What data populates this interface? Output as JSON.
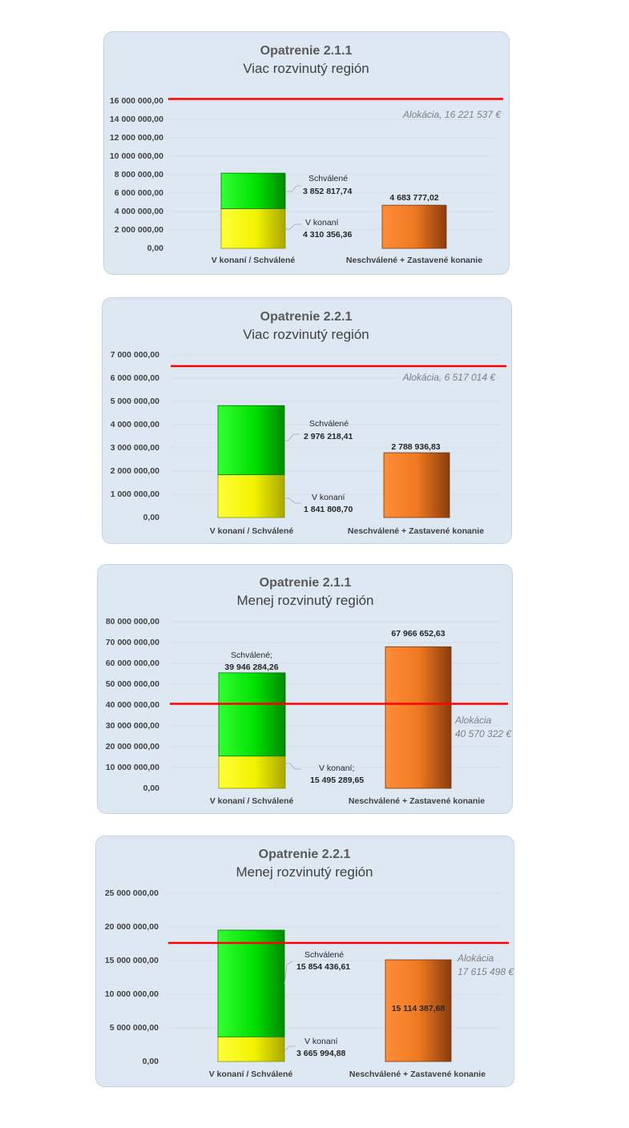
{
  "chart_data": [
    {
      "type": "bar",
      "title": "Opatrenie 2.1.1",
      "subtitle": "Viac rozvinutý región",
      "categories": [
        "V konaní / Schválené",
        "Neschválené + Zastavené konanie"
      ],
      "series": [
        {
          "name": "V konaní",
          "values": [
            4310356.36,
            null
          ],
          "color": "#ffff00"
        },
        {
          "name": "Schválené",
          "values": [
            3852817.74,
            null
          ],
          "color": "#00ee00"
        },
        {
          "name": "",
          "values": [
            null,
            4683777.02
          ],
          "color": "#f58024"
        }
      ],
      "labels": {
        "in_progress": {
          "name": "V konaní",
          "value": "4 310 356,36"
        },
        "approved": {
          "name": "Schválené",
          "value": "3 852 817,74"
        },
        "rejected": {
          "value": "4 683 777,02"
        }
      },
      "allocation": {
        "value": 16221537,
        "label": "Alokácia, 16 221 537 €",
        "color": "#ff0000"
      },
      "ylim": [
        0,
        16000000
      ],
      "yticks": [
        "0,00",
        "2 000 000,00",
        "4 000 000,00",
        "6 000 000,00",
        "8 000 000,00",
        "10 000 000,00",
        "12 000 000,00",
        "14 000 000,00",
        "16 000 000,00"
      ],
      "grid": true
    },
    {
      "type": "bar",
      "title": "Opatrenie 2.2.1",
      "subtitle": "Viac rozvinutý región",
      "categories": [
        "V konaní / Schválené",
        "Neschválené + Zastavené konanie"
      ],
      "series": [
        {
          "name": "V konaní",
          "values": [
            1841808.7,
            null
          ],
          "color": "#ffff00"
        },
        {
          "name": "Schválené",
          "values": [
            2976218.41,
            null
          ],
          "color": "#00ee00"
        },
        {
          "name": "",
          "values": [
            null,
            2788936.83
          ],
          "color": "#f58024"
        }
      ],
      "labels": {
        "in_progress": {
          "name": "V konaní",
          "value": "1 841 808,70"
        },
        "approved": {
          "name": "Schválené",
          "value": "2 976 218,41"
        },
        "rejected": {
          "value": "2 788 936,83"
        }
      },
      "allocation": {
        "value": 6517014,
        "label": "Alokácia, 6 517 014 €",
        "color": "#ff0000"
      },
      "ylim": [
        0,
        7000000
      ],
      "yticks": [
        "0,00",
        "1 000 000,00",
        "2 000 000,00",
        "3 000 000,00",
        "4 000 000,00",
        "5 000 000,00",
        "6 000 000,00",
        "7 000 000,00"
      ],
      "grid": true
    },
    {
      "type": "bar",
      "title": "Opatrenie 2.1.1",
      "subtitle": "Menej rozvinutý región",
      "categories": [
        "V konaní / Schválené",
        "Neschválené + Zastavené konanie"
      ],
      "series": [
        {
          "name": "V konaní",
          "values": [
            15495289.65,
            null
          ],
          "color": "#ffff00"
        },
        {
          "name": "Schválené",
          "values": [
            39946284.26,
            null
          ],
          "color": "#00ee00"
        },
        {
          "name": "",
          "values": [
            null,
            67966652.63
          ],
          "color": "#f58024"
        }
      ],
      "labels": {
        "in_progress": {
          "name": "V konaní;",
          "value": "15 495 289,65"
        },
        "approved": {
          "name": "Schválené;",
          "value": "39 946 284,26"
        },
        "rejected": {
          "value": "67 966 652,63"
        }
      },
      "allocation": {
        "value": 40570322,
        "label_line1": "Alokácia",
        "label_line2": "40 570 322 €",
        "color": "#ff0000"
      },
      "ylim": [
        0,
        80000000
      ],
      "yticks": [
        "0,00",
        "10 000 000,00",
        "20 000 000,00",
        "30 000 000,00",
        "40 000 000,00",
        "50 000 000,00",
        "60 000 000,00",
        "70 000 000,00",
        "80 000 000,00"
      ],
      "grid": true
    },
    {
      "type": "bar",
      "title": "Opatrenie 2.2.1",
      "subtitle": "Menej rozvinutý región",
      "categories": [
        "V konaní / Schválené",
        "Neschválené + Zastavené konanie"
      ],
      "series": [
        {
          "name": "V konaní",
          "values": [
            3665994.88,
            null
          ],
          "color": "#ffff00"
        },
        {
          "name": "Schválené",
          "values": [
            15854436.61,
            null
          ],
          "color": "#00ee00"
        },
        {
          "name": "",
          "values": [
            null,
            15114387.68
          ],
          "color": "#f58024"
        }
      ],
      "labels": {
        "in_progress": {
          "name": "V konaní",
          "value": "3 665 994,88"
        },
        "approved": {
          "name": "Schválené",
          "value": "15 854 436,61"
        },
        "rejected": {
          "value": "15 114 387,68"
        }
      },
      "allocation": {
        "value": 17615498,
        "label_line1": "Alokácia",
        "label_line2": "17 615 498 €",
        "color": "#ff0000"
      },
      "ylim": [
        0,
        25000000
      ],
      "yticks": [
        "0,00",
        "5 000 000,00",
        "10 000 000,00",
        "15 000 000,00",
        "20 000 000,00",
        "25 000 000,00"
      ],
      "grid": true
    }
  ]
}
